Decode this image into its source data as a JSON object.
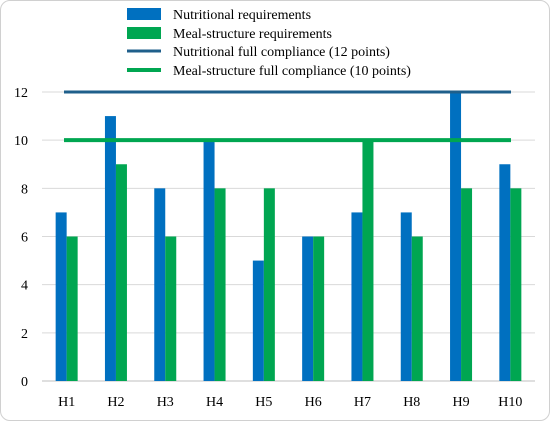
{
  "chart_data": {
    "type": "bar",
    "categories": [
      "H1",
      "H2",
      "H3",
      "H4",
      "H5",
      "H6",
      "H7",
      "H8",
      "H9",
      "H10"
    ],
    "series": [
      {
        "name": "Nutritional requirements",
        "color": "#0070C0",
        "values": [
          7,
          11,
          8,
          10,
          5,
          6,
          7,
          7,
          12,
          9
        ]
      },
      {
        "name": "Meal-structure requirements",
        "color": "#00A651",
        "values": [
          6,
          9,
          6,
          8,
          8,
          6,
          10,
          6,
          8,
          8
        ]
      }
    ],
    "reference_lines": [
      {
        "name": "Nutritional full compliance (12 points)",
        "color": "#1F5F8B",
        "value": 12
      },
      {
        "name": "Meal-structure full compliance (10 points)",
        "color": "#00A651",
        "value": 10
      }
    ],
    "yticks": [
      0,
      2,
      4,
      6,
      8,
      10,
      12
    ],
    "ylim": [
      0,
      12
    ],
    "grid": "horizontal",
    "legend_position": "top",
    "title": "",
    "xlabel": "",
    "ylabel": ""
  }
}
